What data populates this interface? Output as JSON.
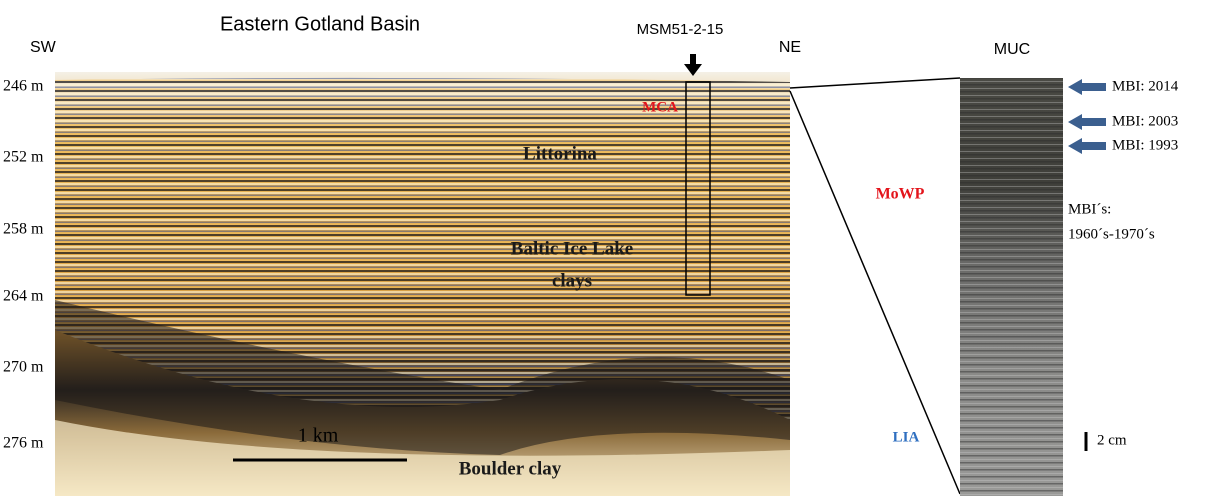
{
  "profile": {
    "title": "Eastern Gotland Basin",
    "left_label": "SW",
    "right_label": "NE",
    "core_label": "MSM51-2-15",
    "depths": [
      "246 m",
      "252 m",
      "258 m",
      "264 m",
      "270 m",
      "276 m"
    ],
    "units": {
      "mca": "MCA",
      "littorina": "Littorina",
      "baltic": [
        "Baltic Ice Lake",
        "clays"
      ],
      "boulder": "Boulder clay"
    },
    "scale": "1 km"
  },
  "core": {
    "title": "MUC",
    "events": [
      "MBI: 2014",
      "MBI: 2003",
      "MBI: 1993"
    ],
    "note": [
      "MBI´s:",
      "1960´s-1970´s"
    ],
    "periods": {
      "mowp": "MoWP",
      "lia": "LIA"
    },
    "scale": "2 cm"
  }
}
